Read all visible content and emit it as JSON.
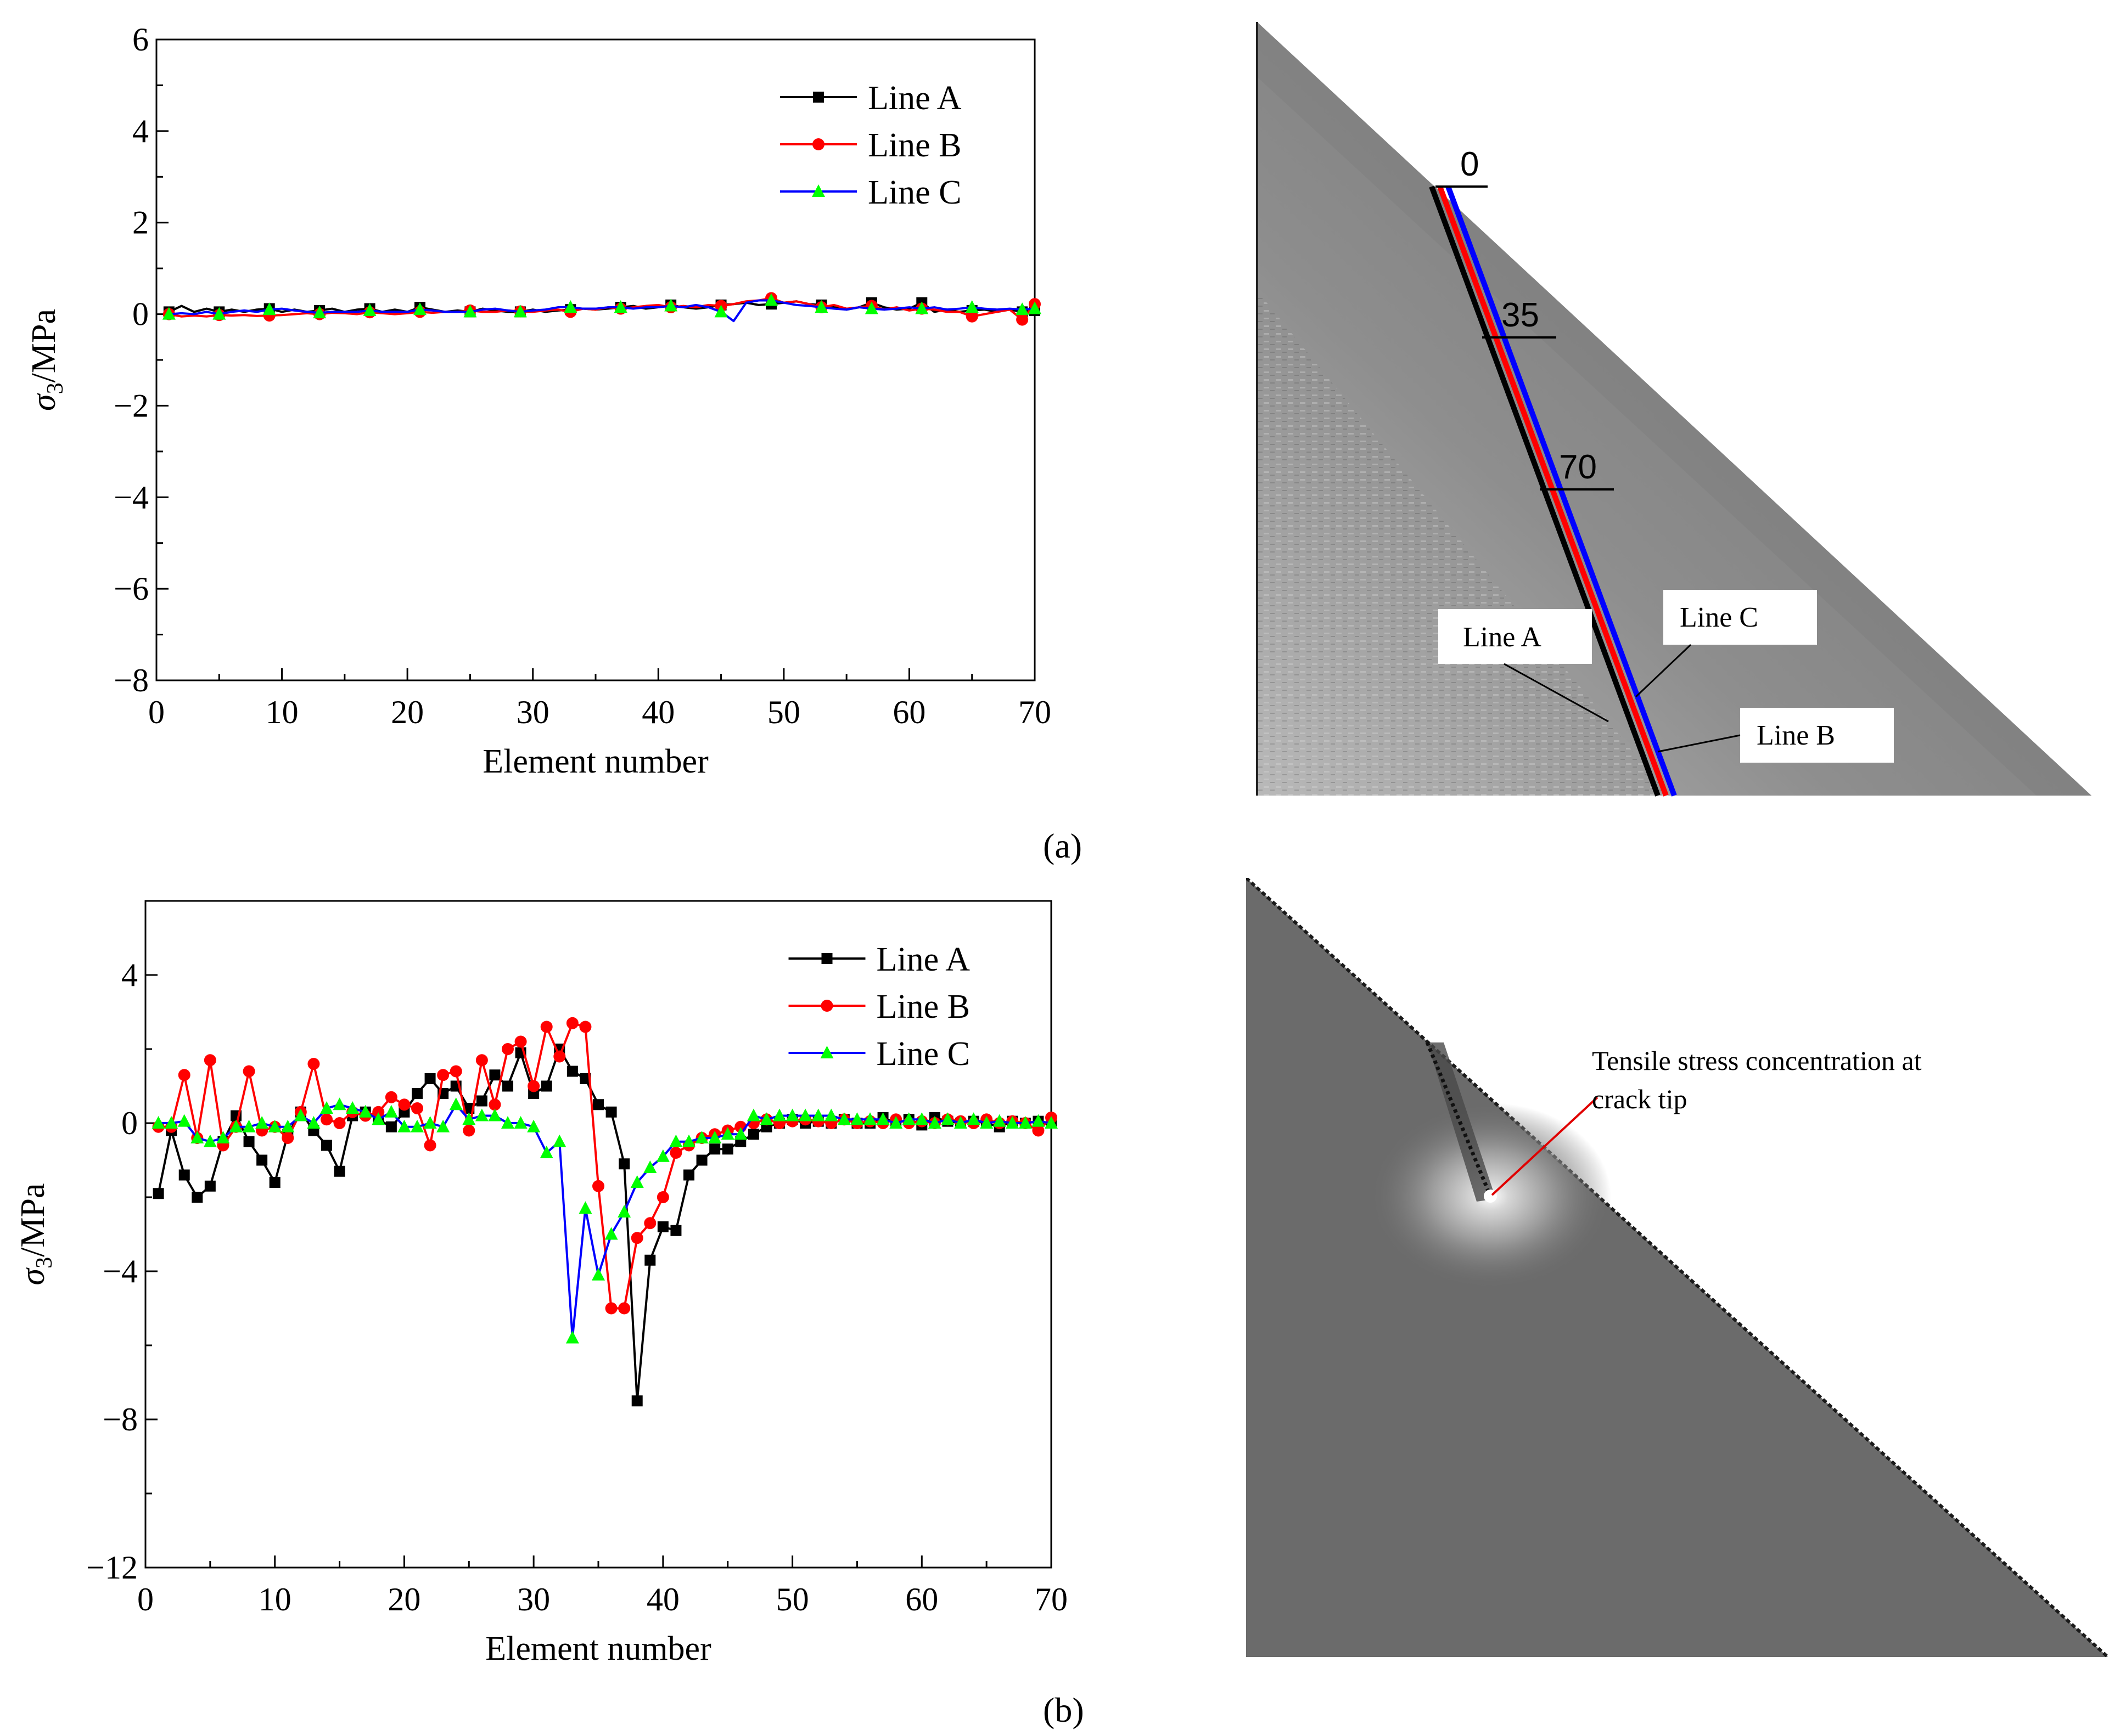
{
  "panel_labels": {
    "a": "(a)",
    "b": "(b)"
  },
  "chart_data": [
    {
      "id": "a",
      "type": "line",
      "title": "",
      "xlabel": "Element number",
      "ylabel_main": "σ",
      "ylabel_sub": "3",
      "ylabel_tail": "/MPa",
      "xlim": [
        0,
        70
      ],
      "ylim": [
        -8,
        6
      ],
      "xticks": [
        0,
        10,
        20,
        30,
        40,
        50,
        60,
        70
      ],
      "yticks": [
        -8,
        -6,
        -4,
        -2,
        0,
        2,
        4,
        6
      ],
      "ytick_labels": [
        "−8",
        "−6",
        "−4",
        "−2",
        "0",
        "2",
        "4",
        "6"
      ],
      "grid": false,
      "legend": "top-right",
      "x": [
        1,
        2,
        3,
        4,
        5,
        6,
        7,
        8,
        9,
        10,
        11,
        12,
        13,
        14,
        15,
        16,
        17,
        18,
        19,
        20,
        21,
        22,
        23,
        24,
        25,
        26,
        27,
        28,
        29,
        30,
        31,
        32,
        33,
        34,
        35,
        36,
        37,
        38,
        39,
        40,
        41,
        42,
        43,
        44,
        45,
        46,
        47,
        48,
        49,
        50,
        51,
        52,
        53,
        54,
        55,
        56,
        57,
        58,
        59,
        60,
        61,
        62,
        63,
        64,
        65,
        66,
        67,
        68,
        69,
        70
      ],
      "series": [
        {
          "name": "Line A",
          "color": "#000000",
          "marker": "square",
          "marker_every": 4,
          "values": [
            0.05,
            0.18,
            0.05,
            0.12,
            0.05,
            0.1,
            0.05,
            0.1,
            0.12,
            0.05,
            0.1,
            0.05,
            0.08,
            0.12,
            0.05,
            0.1,
            0.12,
            0.05,
            0.1,
            0.05,
            0.15,
            0.1,
            0.05,
            0.08,
            0.05,
            0.12,
            0.08,
            0.05,
            0.05,
            0.1,
            0.05,
            0.08,
            0.1,
            0.12,
            0.1,
            0.12,
            0.15,
            0.18,
            0.12,
            0.15,
            0.2,
            0.15,
            0.12,
            0.15,
            0.2,
            0.22,
            0.25,
            0.2,
            0.22,
            0.25,
            0.28,
            0.22,
            0.2,
            0.15,
            0.1,
            0.15,
            0.25,
            0.15,
            0.1,
            0.12,
            0.25,
            0.05,
            0.1,
            0.05,
            0.08,
            0.1,
            0.05,
            0.1,
            0.05,
            0.08
          ]
        },
        {
          "name": "Line B",
          "color": "#ff0000",
          "marker": "circle",
          "marker_every": 4,
          "values": [
            0.0,
            -0.05,
            -0.03,
            -0.05,
            -0.02,
            -0.03,
            -0.02,
            -0.04,
            -0.03,
            -0.02,
            0.0,
            0.02,
            0.0,
            0.03,
            0.02,
            0.0,
            0.04,
            0.02,
            0.0,
            0.02,
            0.05,
            0.03,
            0.05,
            0.05,
            0.08,
            0.05,
            0.05,
            0.08,
            0.06,
            0.05,
            0.08,
            0.1,
            0.05,
            0.12,
            0.1,
            0.15,
            0.12,
            0.15,
            0.18,
            0.2,
            0.15,
            0.18,
            0.15,
            0.2,
            0.18,
            0.22,
            0.28,
            0.3,
            0.35,
            0.25,
            0.28,
            0.22,
            0.15,
            0.2,
            0.12,
            0.15,
            0.18,
            0.1,
            0.15,
            0.08,
            0.12,
            0.1,
            0.05,
            0.05,
            -0.05,
            0.0,
            0.05,
            0.1,
            -0.12,
            0.22
          ]
        },
        {
          "name": "Line C",
          "color": "#0000ff",
          "marker": "triangle",
          "marker_every": 4,
          "values": [
            0.0,
            0.02,
            0.0,
            0.05,
            0.0,
            0.05,
            0.08,
            0.05,
            0.1,
            0.12,
            0.08,
            0.05,
            0.03,
            0.05,
            0.05,
            0.05,
            0.08,
            0.05,
            0.05,
            0.05,
            0.1,
            0.08,
            0.05,
            0.05,
            0.05,
            0.1,
            0.12,
            0.08,
            0.05,
            0.08,
            0.1,
            0.15,
            0.15,
            0.12,
            0.12,
            0.15,
            0.15,
            0.12,
            0.15,
            0.15,
            0.18,
            0.15,
            0.2,
            0.15,
            0.05,
            -0.15,
            0.25,
            0.3,
            0.3,
            0.25,
            0.2,
            0.18,
            0.15,
            0.12,
            0.1,
            0.15,
            0.12,
            0.1,
            0.12,
            0.15,
            0.12,
            0.15,
            0.1,
            0.12,
            0.15,
            0.12,
            0.1,
            0.12,
            0.1,
            0.12
          ]
        }
      ]
    },
    {
      "id": "b",
      "type": "line",
      "title": "",
      "xlabel": "Element number",
      "ylabel_main": "σ",
      "ylabel_sub": "3",
      "ylabel_tail": "/MPa",
      "xlim": [
        0,
        70
      ],
      "ylim": [
        -12,
        6
      ],
      "xticks": [
        0,
        10,
        20,
        30,
        40,
        50,
        60,
        70
      ],
      "yticks": [
        -12,
        -8,
        -4,
        0,
        4
      ],
      "ytick_labels": [
        "−12",
        "−8",
        "−4",
        "0",
        "4"
      ],
      "grid": false,
      "legend": "top-right",
      "x": [
        1,
        2,
        3,
        4,
        5,
        6,
        7,
        8,
        9,
        10,
        11,
        12,
        13,
        14,
        15,
        16,
        17,
        18,
        19,
        20,
        21,
        22,
        23,
        24,
        25,
        26,
        27,
        28,
        29,
        30,
        31,
        32,
        33,
        34,
        35,
        36,
        37,
        38,
        39,
        40,
        41,
        42,
        43,
        44,
        45,
        46,
        47,
        48,
        49,
        50,
        51,
        52,
        53,
        54,
        55,
        56,
        57,
        58,
        59,
        60,
        61,
        62,
        63,
        64,
        65,
        66,
        67,
        68,
        69,
        70
      ],
      "series": [
        {
          "name": "Line A",
          "color": "#000000",
          "marker": "square",
          "marker_every": 1,
          "values": [
            -1.9,
            -0.2,
            -1.4,
            -2.0,
            -1.7,
            -0.5,
            0.2,
            -0.5,
            -1.0,
            -1.6,
            -0.3,
            0.3,
            -0.2,
            -0.6,
            -1.3,
            0.2,
            0.3,
            0.1,
            -0.1,
            0.3,
            0.8,
            1.2,
            0.8,
            1.0,
            0.4,
            0.6,
            1.3,
            1.0,
            1.9,
            0.8,
            1.0,
            2.0,
            1.4,
            1.2,
            0.5,
            0.3,
            -1.1,
            -7.5,
            -3.7,
            -2.8,
            -2.9,
            -1.4,
            -1.0,
            -0.7,
            -0.7,
            -0.5,
            -0.3,
            -0.1,
            0.0,
            0.1,
            0.0,
            0.05,
            0.0,
            0.1,
            0.0,
            0.0,
            0.15,
            0.0,
            0.1,
            -0.05,
            0.15,
            0.05,
            0.0,
            0.05,
            0.0,
            -0.1,
            0.05,
            0.0,
            0.05,
            0.0
          ]
        },
        {
          "name": "Line B",
          "color": "#ff0000",
          "marker": "circle",
          "marker_every": 1,
          "values": [
            -0.1,
            -0.1,
            1.3,
            -0.4,
            1.7,
            -0.6,
            -0.1,
            1.4,
            -0.2,
            -0.1,
            -0.4,
            0.3,
            1.6,
            0.1,
            0.0,
            0.3,
            0.2,
            0.3,
            0.7,
            0.5,
            0.4,
            -0.6,
            1.3,
            1.4,
            -0.2,
            1.7,
            0.5,
            2.0,
            2.2,
            1.0,
            2.6,
            1.8,
            2.7,
            2.6,
            -1.7,
            -5.0,
            -5.0,
            -3.1,
            -2.7,
            -2.0,
            -0.8,
            -0.6,
            -0.4,
            -0.3,
            -0.2,
            -0.1,
            0.0,
            0.1,
            0.0,
            0.05,
            0.1,
            0.05,
            0.0,
            0.1,
            0.0,
            0.05,
            0.0,
            0.1,
            0.0,
            0.05,
            0.0,
            0.1,
            0.05,
            0.0,
            0.1,
            0.0,
            0.05,
            0.0,
            -0.2,
            0.15
          ]
        },
        {
          "name": "Line C",
          "color": "#0000ff",
          "marker": "triangle",
          "marker_every": 1,
          "values": [
            0.0,
            0.0,
            0.05,
            -0.4,
            -0.5,
            -0.4,
            -0.1,
            -0.1,
            0.0,
            -0.1,
            -0.1,
            0.2,
            0.0,
            0.4,
            0.5,
            0.4,
            0.3,
            0.1,
            0.3,
            -0.1,
            -0.1,
            0.0,
            -0.1,
            0.5,
            0.1,
            0.2,
            0.2,
            0.0,
            0.0,
            -0.1,
            -0.8,
            -0.5,
            -5.8,
            -2.3,
            -4.1,
            -3.0,
            -2.4,
            -1.6,
            -1.2,
            -0.9,
            -0.5,
            -0.5,
            -0.4,
            -0.4,
            -0.3,
            -0.3,
            0.2,
            0.1,
            0.2,
            0.2,
            0.2,
            0.2,
            0.2,
            0.1,
            0.1,
            0.1,
            0.1,
            0.0,
            0.1,
            0.1,
            0.0,
            0.1,
            0.0,
            0.1,
            0.0,
            0.05,
            0.0,
            0.0,
            0.05,
            0.0
          ]
        }
      ]
    }
  ],
  "diagram_a": {
    "station_labels": [
      "0",
      "35",
      "70"
    ],
    "line_labels": {
      "a": "Line A",
      "b": "Line B",
      "c": "Line C"
    },
    "colors": {
      "a": "#000000",
      "b": "#ff0000",
      "c": "#0000ff",
      "slope_fill": "#6e6e6e"
    }
  },
  "diagram_b": {
    "annotation_line1": "Tensile stress concentration at",
    "annotation_line2": "crack tip",
    "colors": {
      "slope_fill": "#6b6b6b",
      "leader": "#e00000"
    }
  }
}
